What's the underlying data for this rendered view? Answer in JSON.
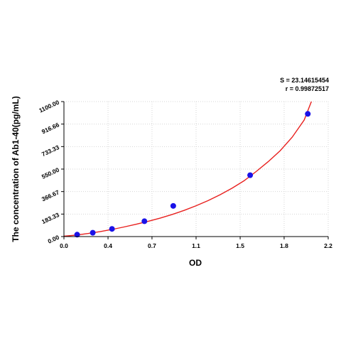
{
  "chart_data": {
    "type": "scatter",
    "title": "",
    "xlabel": "OD",
    "ylabel": "The concentration of Ab1-40(pg/mL)",
    "xlim": [
      0,
      2.2
    ],
    "ylim": [
      0,
      1100
    ],
    "x_ticks": [
      "0.0",
      "0.4",
      "0.7",
      "1.1",
      "1.5",
      "1.8",
      "2.2"
    ],
    "x_tick_values": [
      0,
      0.367,
      0.733,
      1.1,
      1.467,
      1.833,
      2.2
    ],
    "y_ticks": [
      "0.00",
      "183.33",
      "366.67",
      "550.00",
      "733.33",
      "916.66",
      "1100.00"
    ],
    "y_tick_values": [
      0,
      183.33,
      366.67,
      550,
      733.33,
      916.66,
      1100
    ],
    "grid": true,
    "stats": {
      "s": "S = 23.14615454",
      "r": "r = 0.99872517"
    },
    "points": {
      "x": [
        0.11,
        0.24,
        0.4,
        0.67,
        0.91,
        1.55,
        2.03
      ],
      "y": [
        15.6,
        31.2,
        62.5,
        125,
        250,
        500,
        1000
      ]
    },
    "curve": {
      "x": [
        0,
        0.1,
        0.2,
        0.3,
        0.4,
        0.5,
        0.6,
        0.7,
        0.8,
        0.9,
        1.0,
        1.1,
        1.2,
        1.3,
        1.4,
        1.5,
        1.6,
        1.7,
        1.8,
        1.9,
        2.0,
        2.06
      ],
      "y": [
        3,
        12,
        25,
        40,
        58,
        78,
        100,
        124,
        150,
        180,
        213,
        251,
        293,
        341,
        394,
        455,
        530,
        610,
        700,
        810,
        950,
        1100
      ]
    },
    "colors": {
      "points": "#1a12e8",
      "curve": "#e8201e",
      "grid": "#d6d6d6",
      "axis": "#000000"
    }
  }
}
